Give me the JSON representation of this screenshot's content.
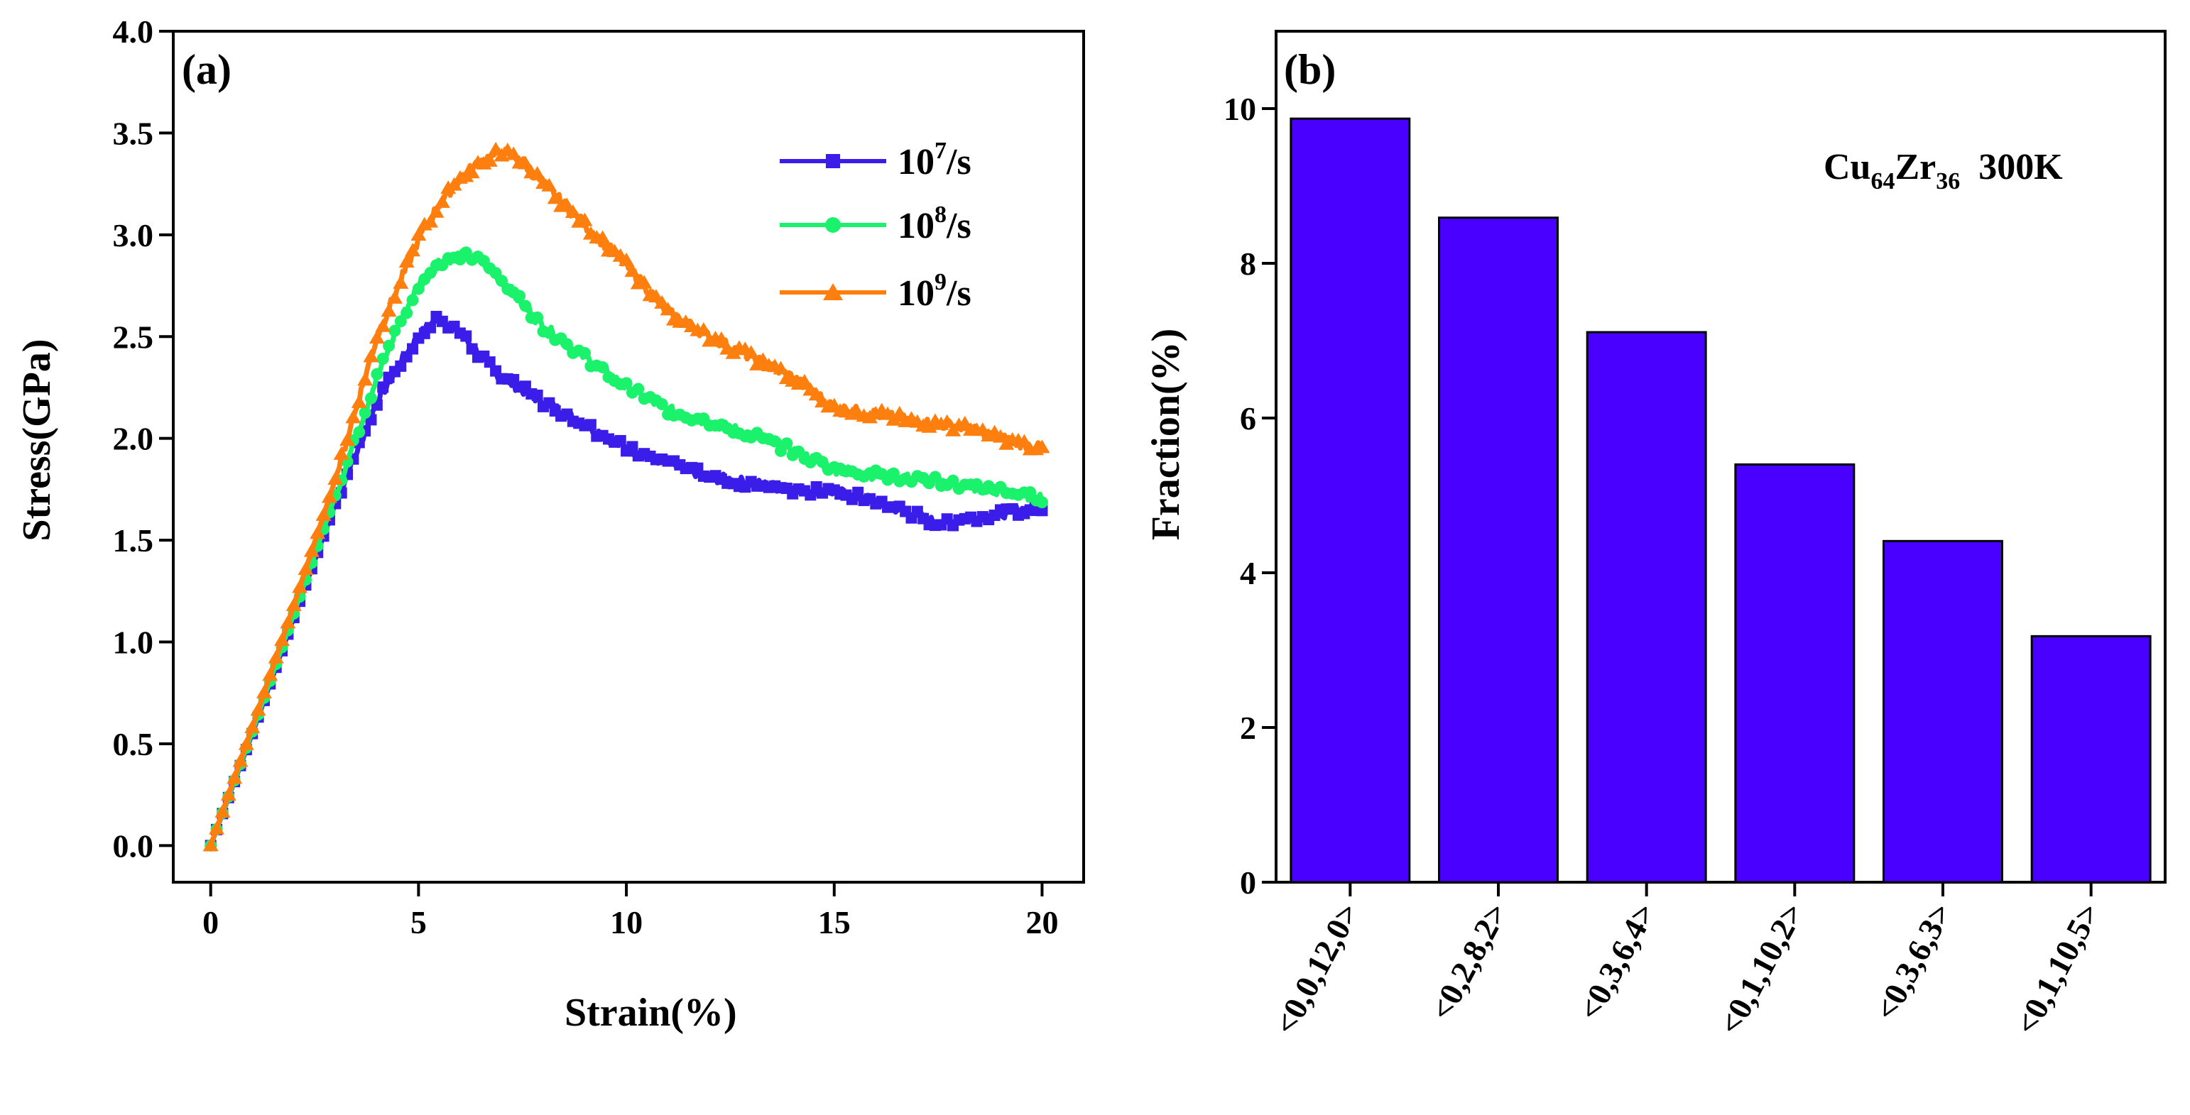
{
  "chart_data": [
    {
      "panel_label": "(a)",
      "type": "line",
      "xlabel": "Strain(%)",
      "ylabel": "Stress(GPa)",
      "xlim": [
        -0.9,
        21.0
      ],
      "ylim": [
        -0.18,
        4.0
      ],
      "xticks": [
        0,
        5,
        10,
        15,
        20
      ],
      "xtick_labels": [
        "0",
        "5",
        "10",
        "15",
        "20"
      ],
      "yticks": [
        0.0,
        0.5,
        1.0,
        1.5,
        2.0,
        2.5,
        3.0,
        3.5,
        4.0
      ],
      "ytick_labels": [
        "0.0",
        "0.5",
        "1.0",
        "1.5",
        "2.0",
        "2.5",
        "3.0",
        "3.5",
        "4.0"
      ],
      "legend_position": "upper-right",
      "series": [
        {
          "name": "10⁷/s",
          "legend_base": "10",
          "legend_exp": "7",
          "legend_unit": "/s",
          "color": "#3a1de8",
          "marker": "square",
          "x": [
            0,
            1,
            2,
            3,
            4,
            4.5,
            5,
            5.5,
            6,
            6.5,
            7,
            8,
            9,
            10,
            11,
            12,
            13,
            14,
            15,
            16,
            17,
            17.5,
            18,
            19,
            20
          ],
          "y": [
            0,
            0.55,
            1.12,
            1.68,
            2.18,
            2.35,
            2.5,
            2.6,
            2.52,
            2.4,
            2.3,
            2.18,
            2.07,
            1.95,
            1.88,
            1.81,
            1.78,
            1.75,
            1.74,
            1.69,
            1.62,
            1.58,
            1.6,
            1.63,
            1.67
          ]
        },
        {
          "name": "10⁸/s",
          "legend_base": "10",
          "legend_exp": "8",
          "legend_unit": "/s",
          "color": "#19f26a",
          "marker": "circle",
          "x": [
            0,
            1,
            2,
            3,
            4,
            4.5,
            5,
            5.5,
            6,
            6.5,
            7,
            7.5,
            8,
            9,
            10,
            11,
            12,
            13,
            14,
            15,
            16,
            17,
            18,
            19,
            20
          ],
          "y": [
            0,
            0.56,
            1.14,
            1.72,
            2.3,
            2.55,
            2.75,
            2.87,
            2.9,
            2.87,
            2.78,
            2.66,
            2.55,
            2.4,
            2.25,
            2.14,
            2.08,
            2.02,
            1.94,
            1.85,
            1.82,
            1.8,
            1.77,
            1.74,
            1.71
          ]
        },
        {
          "name": "10⁹/s",
          "legend_base": "10",
          "legend_exp": "9",
          "legend_unit": "/s",
          "color": "#ff7f0e",
          "marker": "triangle",
          "x": [
            0,
            1,
            2,
            3,
            4,
            5,
            5.5,
            6,
            6.5,
            7,
            7.5,
            8,
            9,
            10,
            11,
            12,
            13,
            14,
            15,
            16,
            17,
            18,
            19,
            20
          ],
          "y": [
            0,
            0.58,
            1.18,
            1.8,
            2.5,
            2.98,
            3.15,
            3.28,
            3.36,
            3.41,
            3.36,
            3.25,
            3.05,
            2.85,
            2.62,
            2.5,
            2.4,
            2.3,
            2.15,
            2.12,
            2.08,
            2.06,
            2.0,
            1.95
          ]
        }
      ]
    },
    {
      "panel_label": "(b)",
      "type": "bar",
      "xlabel": "",
      "ylabel": "Fraction(%)",
      "ylim": [
        0,
        11
      ],
      "yticks": [
        0,
        2,
        4,
        6,
        8,
        10
      ],
      "ytick_labels": [
        "0",
        "2",
        "4",
        "6",
        "8",
        "10"
      ],
      "categories": [
        "<0,0,12,0>",
        "<0,2,8,2>",
        "<0,3,6,4>",
        "<0,1,10,2>",
        "<0,3,6,3>",
        "<0,1,10,5>"
      ],
      "values": [
        9.87,
        8.59,
        7.11,
        5.4,
        4.41,
        3.18
      ],
      "bar_color": "#4a00ff",
      "annotation": {
        "el1": "Cu",
        "sub1": "64",
        "el2": "Zr",
        "sub2": "36",
        "temp": "300K",
        "position": "upper-right"
      }
    }
  ]
}
